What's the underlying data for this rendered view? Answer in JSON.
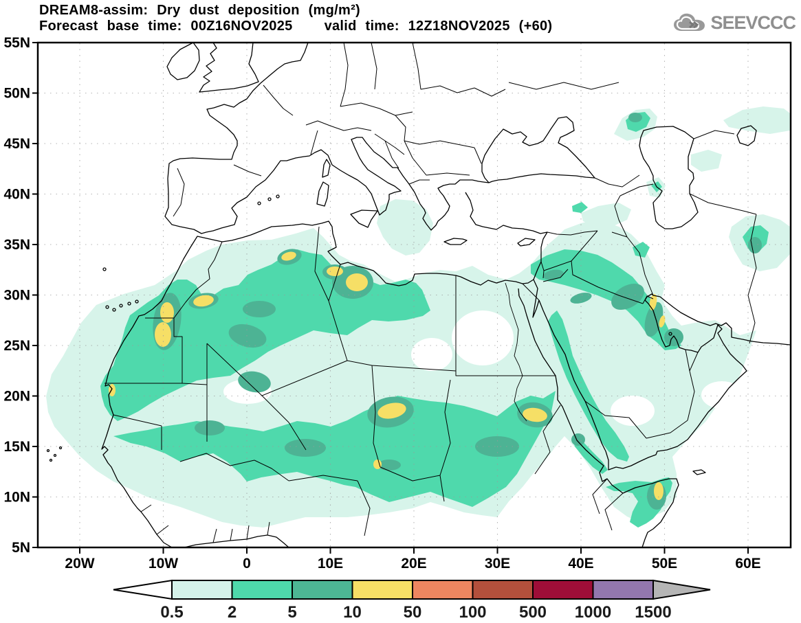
{
  "header": {
    "title": "DREAM8-assim: Dry dust deposition (mg/m²)",
    "base": "Forecast base time: 00Z16NOV2025",
    "valid": "valid time: 12Z18NOV2025 (+60)"
  },
  "logo": {
    "text": "SEEVCCC",
    "icon": "cloud-icon",
    "color": "#8f8f8f"
  },
  "map": {
    "lat_ticks": [
      "55N",
      "50N",
      "45N",
      "40N",
      "35N",
      "30N",
      "25N",
      "20N",
      "15N",
      "10N",
      "5N"
    ],
    "lon_ticks": [
      "20W",
      "10W",
      "0",
      "10E",
      "20E",
      "30E",
      "40E",
      "50E",
      "60E"
    ]
  },
  "palette": {
    "light": "#d7f4ea",
    "teal": "#4fd9ac",
    "dark": "#4db394",
    "yellow": "#f6df66",
    "grid": "#9a9a9a",
    "coast": "#000000"
  },
  "colorbar": {
    "labels": [
      "0.5",
      "2",
      "5",
      "10",
      "50",
      "100",
      "500",
      "1000",
      "1500"
    ],
    "segment_colors": [
      "#d5f3ea",
      "#4ed9ab",
      "#4db694",
      "#f6df66",
      "#ee8660",
      "#b3503c",
      "#9e0e38",
      "#9377ae"
    ],
    "underflow_color": "#ffffff",
    "overflow_color": "#b5b5b5"
  }
}
